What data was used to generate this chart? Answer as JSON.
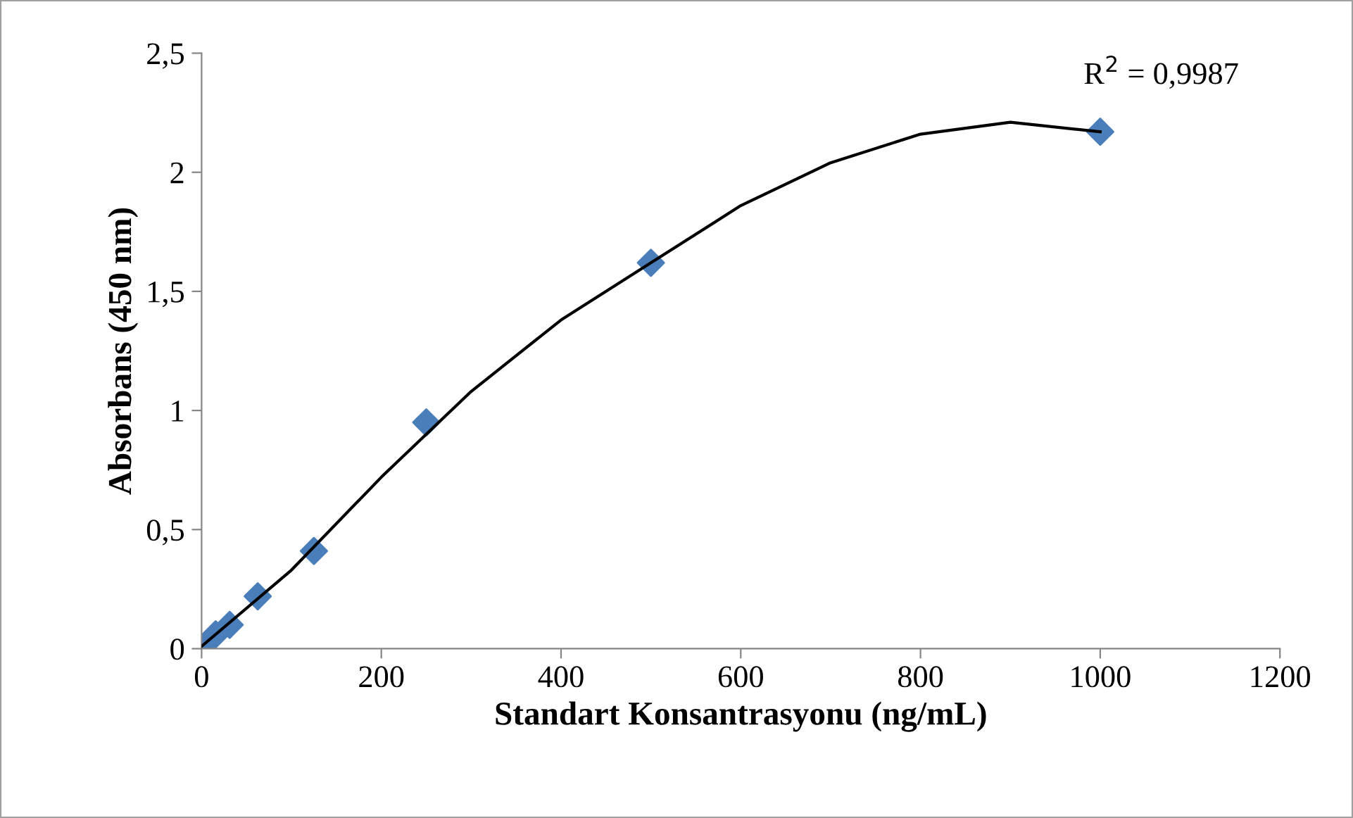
{
  "chart_data": {
    "type": "scatter",
    "xlabel": "Standart Konsantrasyonu (ng/mL)",
    "ylabel": "Absorbans (450 nm)",
    "x": [
      0,
      15.6,
      31.25,
      62.5,
      125,
      250,
      500,
      1000
    ],
    "series": [
      {
        "color": "#4a7ebb",
        "marker": "diamond",
        "values": [
          0,
          0.06,
          0.1,
          0.22,
          0.41,
          0.95,
          1.62,
          2.17
        ]
      },
      {
        "type": "line",
        "color": "#000000",
        "marker": "none",
        "line_style": "solid",
        "x": [
          0,
          100,
          200,
          300,
          400,
          500,
          600,
          700,
          800,
          900,
          1000
        ],
        "values": [
          0.01,
          0.33,
          0.72,
          1.08,
          1.38,
          1.62,
          1.86,
          2.04,
          2.16,
          2.21,
          2.17
        ]
      }
    ],
    "xlim": [
      0,
      1200
    ],
    "xticks": [
      0,
      200,
      400,
      600,
      800,
      1000,
      1200
    ],
    "ylim": [
      0,
      2.5
    ],
    "yticks": [
      0,
      {
        "value": 0.5,
        "label": "0,5"
      },
      1,
      {
        "value": 1.5,
        "label": "1,5"
      },
      2,
      {
        "value": 2.5,
        "label": "2,5"
      }
    ],
    "grid": false,
    "legend": false,
    "annotations": [
      "R$^{2}$ = 0,9987"
    ]
  }
}
